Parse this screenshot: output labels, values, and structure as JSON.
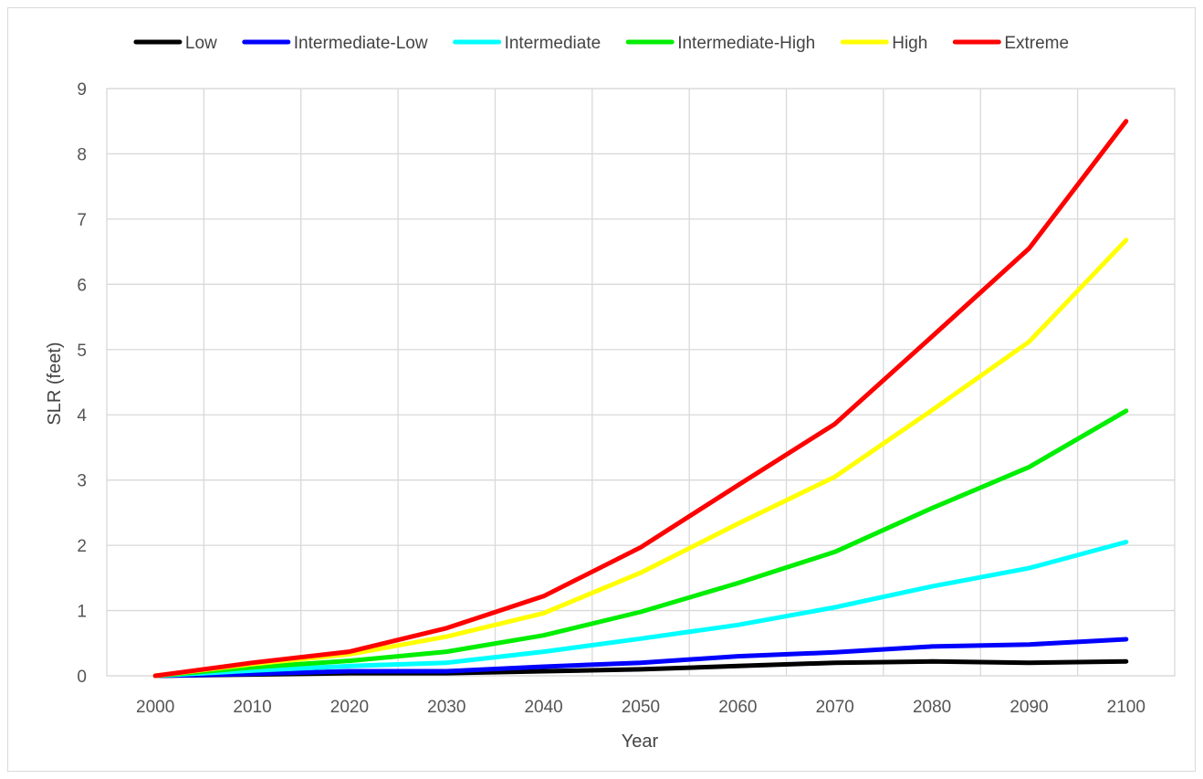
{
  "chart_data": {
    "type": "line",
    "title": "",
    "xlabel": "Year",
    "ylabel": "SLR (feet)",
    "x": [
      2000,
      2010,
      2020,
      2030,
      2040,
      2050,
      2060,
      2070,
      2080,
      2090,
      2100
    ],
    "x_tick_labels": [
      "2000",
      "2010",
      "2020",
      "2030",
      "2040",
      "2050",
      "2060",
      "2070",
      "2080",
      "2090",
      "2100"
    ],
    "y_tick_labels": [
      "0",
      "1",
      "2",
      "3",
      "4",
      "5",
      "6",
      "7",
      "8",
      "9"
    ],
    "xlim": [
      1995,
      2105
    ],
    "ylim": [
      0,
      9
    ],
    "grid": true,
    "legend_position": "top",
    "series": [
      {
        "name": "Low",
        "color": "#000000",
        "values": [
          0,
          0.02,
          0.04,
          0.04,
          0.07,
          0.1,
          0.15,
          0.2,
          0.22,
          0.2,
          0.22
        ]
      },
      {
        "name": "Intermediate-Low",
        "color": "#0000ff",
        "values": [
          0,
          0.03,
          0.07,
          0.07,
          0.14,
          0.2,
          0.3,
          0.36,
          0.45,
          0.48,
          0.56
        ]
      },
      {
        "name": "Intermediate",
        "color": "#00ffff",
        "values": [
          0,
          0.08,
          0.15,
          0.2,
          0.37,
          0.57,
          0.78,
          1.05,
          1.37,
          1.65,
          2.05
        ]
      },
      {
        "name": "Intermediate-High",
        "color": "#00ee00",
        "values": [
          0,
          0.13,
          0.23,
          0.37,
          0.62,
          0.98,
          1.42,
          1.9,
          2.57,
          3.2,
          4.06
        ]
      },
      {
        "name": "High",
        "color": "#ffff00",
        "values": [
          0,
          0.18,
          0.33,
          0.6,
          0.96,
          1.58,
          2.33,
          3.05,
          4.07,
          5.12,
          6.68
        ]
      },
      {
        "name": "Extreme",
        "color": "#ff0000",
        "values": [
          0,
          0.2,
          0.37,
          0.73,
          1.22,
          1.97,
          2.92,
          3.86,
          5.2,
          6.55,
          8.5
        ]
      }
    ]
  }
}
